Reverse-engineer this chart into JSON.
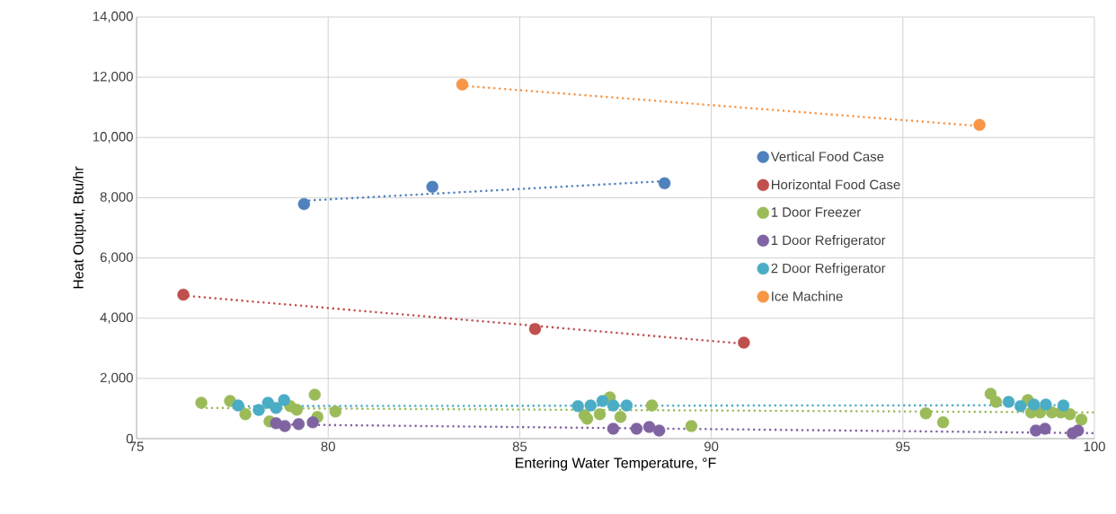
{
  "chart_data": {
    "type": "scatter",
    "xlabel": "Entering Water Temperature, °F",
    "ylabel": "Heat Output, Btu/hr",
    "xlim": [
      75,
      100
    ],
    "xticks": [
      75,
      80,
      85,
      90,
      95,
      100
    ],
    "ylim": [
      0,
      14000
    ],
    "yticks": [
      {
        "value": 0,
        "label": "0"
      },
      {
        "value": 2000,
        "label": "2,000"
      },
      {
        "value": 4000,
        "label": "4,000"
      },
      {
        "value": 6000,
        "label": "6,000"
      },
      {
        "value": 8000,
        "label": "8,000"
      },
      {
        "value": 10000,
        "label": "10,000"
      },
      {
        "value": 12000,
        "label": "12,000"
      },
      {
        "value": 14000,
        "label": "14,000"
      }
    ],
    "grid": true,
    "legend": "right",
    "marker": "circle",
    "series": [
      {
        "name": "Vertical Food Case",
        "color": "#4f81bd",
        "x": [
          79.37,
          82.72,
          88.78
        ],
        "values": [
          7790,
          8360,
          8480
        ]
      },
      {
        "name": "Horizontal Food Case",
        "color": "#c0504d",
        "x": [
          76.22,
          85.4,
          90.85
        ],
        "values": [
          4780,
          3640,
          3190
        ]
      },
      {
        "name": "1 Door Freezer",
        "color": "#9bbb59",
        "x": [
          76.69,
          77.44,
          77.84,
          79.65,
          80.19,
          79.18,
          78.47,
          79.72,
          79.01,
          86.5,
          86.69,
          87.35,
          87.09,
          87.63,
          88.45,
          89.48,
          86.76,
          95.6,
          96.05,
          97.29,
          97.43,
          98.26,
          98.35,
          98.58,
          98.89,
          99.12,
          99.36,
          99.66
        ],
        "values": [
          1190,
          1250,
          810,
          1460,
          900,
          960,
          570,
          720,
          1080,
          null,
          780,
          1370,
          810,
          720,
          1100,
          420,
          660,
          840,
          540,
          1490,
          1220,
          1280,
          870,
          870,
          870,
          870,
          810,
          630
        ]
      },
      {
        "name": "1 Door Refrigerator",
        "color": "#8064a2",
        "x": [
          78.64,
          78.87,
          79.23,
          79.6,
          87.44,
          88.05,
          88.38,
          88.64,
          98.47,
          98.71,
          99.43,
          99.57
        ],
        "values": [
          510,
          420,
          480,
          540,
          330,
          330,
          390,
          270,
          270,
          330,
          180,
          270
        ]
      },
      {
        "name": "2 Door Refrigerator",
        "color": "#4bacc6",
        "x": [
          77.65,
          78.19,
          78.43,
          78.85,
          78.64,
          86.52,
          86.85,
          87.16,
          87.44,
          87.79,
          97.76,
          98.07,
          98.42,
          98.73,
          99.19
        ],
        "values": [
          1100,
          950,
          1190,
          1280,
          1020,
          1080,
          1100,
          1250,
          1100,
          1100,
          1220,
          1080,
          1130,
          1130,
          1100
        ]
      },
      {
        "name": "Ice Machine",
        "color": "#f79646",
        "x": [
          83.5,
          97.0
        ],
        "values": [
          11760,
          10420
        ]
      },
      {
        "type": "line",
        "color": "#4f81bd",
        "marker": "none",
        "line_style": "dotted",
        "x": [
          79.37,
          88.78
        ],
        "values": [
          7900,
          8550
        ]
      },
      {
        "type": "line",
        "color": "#c0504d",
        "marker": "none",
        "line_style": "dotted",
        "x": [
          76.22,
          90.85
        ],
        "values": [
          4750,
          3150
        ]
      },
      {
        "type": "line",
        "color": "#9bbb59",
        "marker": "none",
        "line_style": "dotted",
        "x": [
          76.69,
          100
        ],
        "values": [
          1020,
          870
        ]
      },
      {
        "type": "line",
        "color": "#8064a2",
        "marker": "none",
        "line_style": "dotted",
        "x": [
          78.64,
          100
        ],
        "values": [
          470,
          180
        ]
      },
      {
        "type": "line",
        "color": "#4bacc6",
        "marker": "none",
        "line_style": "dotted",
        "x": [
          77.65,
          99.19
        ],
        "values": [
          1080,
          1110
        ]
      },
      {
        "type": "line",
        "color": "#f79646",
        "marker": "none",
        "line_style": "dotted",
        "x": [
          83.5,
          97.0
        ],
        "values": [
          11720,
          10380
        ]
      }
    ]
  }
}
